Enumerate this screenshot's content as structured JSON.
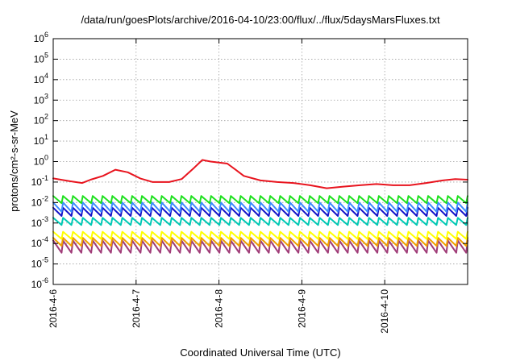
{
  "chart_data": {
    "type": "line",
    "title": "/data/run/goesPlots/archive/2016-04-10/23:00/flux/../flux/5daysMarsFluxes.txt",
    "xlabel": "Coordinated Universal Time (UTC)",
    "ylabel": "protons/cm²-s-sr-MeV",
    "yscale": "log",
    "ylim": [
      1e-06,
      1000000
    ],
    "xlim": [
      "2016-04-06",
      "2016-04-11"
    ],
    "grid": true,
    "x_ticks": [
      "2016-4-6",
      "2016-4-7",
      "2016-4-8",
      "2016-4-9",
      "2016-4-10"
    ],
    "y_ticks": [
      {
        "base": "10",
        "exp": "-6"
      },
      {
        "base": "10",
        "exp": "-5"
      },
      {
        "base": "10",
        "exp": "-4"
      },
      {
        "base": "10",
        "exp": "-3"
      },
      {
        "base": "10",
        "exp": "-2"
      },
      {
        "base": "10",
        "exp": "-1"
      },
      {
        "base": "10",
        "exp": "0"
      },
      {
        "base": "10",
        "exp": "1"
      },
      {
        "base": "10",
        "exp": "2"
      },
      {
        "base": "10",
        "exp": "3"
      },
      {
        "base": "10",
        "exp": "4"
      },
      {
        "base": "10",
        "exp": "5"
      },
      {
        "base": "10",
        "exp": "6"
      }
    ],
    "series": [
      {
        "color": "#e8141e",
        "x_days": [
          0,
          0.2,
          0.35,
          0.45,
          0.6,
          0.75,
          0.9,
          1.05,
          1.2,
          1.4,
          1.55,
          1.7,
          1.8,
          1.9,
          2.0,
          2.1,
          2.2,
          2.3,
          2.5,
          2.7,
          2.9,
          3.1,
          3.3,
          3.5,
          3.7,
          3.9,
          4.1,
          4.3,
          4.5,
          4.7,
          4.85,
          5.0
        ],
        "values": [
          0.15,
          0.11,
          0.09,
          0.13,
          0.2,
          0.4,
          0.3,
          0.15,
          0.1,
          0.1,
          0.14,
          0.5,
          1.2,
          1.0,
          0.9,
          0.8,
          0.4,
          0.2,
          0.12,
          0.1,
          0.09,
          0.07,
          0.05,
          0.06,
          0.07,
          0.08,
          0.07,
          0.07,
          0.09,
          0.12,
          0.14,
          0.13
        ]
      },
      {
        "color": "#1ee01e",
        "mean": 0.014,
        "amp": 0.35
      },
      {
        "color": "#3c8cff",
        "mean": 0.006,
        "amp": 0.45
      },
      {
        "color": "#1414c8",
        "mean": 0.0035,
        "amp": 0.4
      },
      {
        "color": "#00c8b4",
        "mean": 0.0012,
        "amp": 0.35
      },
      {
        "color": "#ffff00",
        "mean": 0.00025,
        "amp": 0.35
      },
      {
        "color": "#f0a000",
        "mean": 0.00012,
        "amp": 0.4
      },
      {
        "color": "#a03c78",
        "mean": 7e-05,
        "amp": 0.6
      }
    ]
  }
}
